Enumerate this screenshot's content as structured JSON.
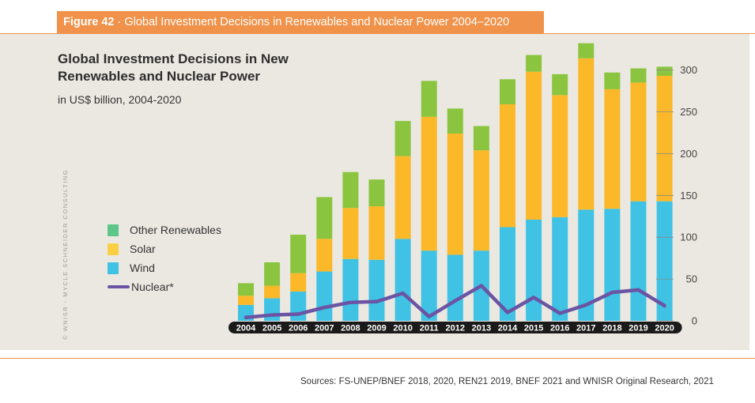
{
  "header": {
    "figure_label": "Figure 42",
    "separator": " · ",
    "title": "Global Investment Decisions in Renewables and Nuclear Power 2004–2020"
  },
  "chart_data": {
    "type": "bar",
    "title": "Global Investment Decisions in New Renewables and Nuclear Power",
    "subtitle": "in US$ billion, 2004-2020",
    "categories": [
      "2004",
      "2005",
      "2006",
      "2007",
      "2008",
      "2009",
      "2010",
      "2011",
      "2012",
      "2013",
      "2014",
      "2015",
      "2016",
      "2017",
      "2018",
      "2019",
      "2020"
    ],
    "stacked": true,
    "series": [
      {
        "name": "Wind",
        "kind": "bar",
        "color": "#3fc2e4",
        "values": [
          19,
          27,
          35,
          59,
          74,
          73,
          98,
          84,
          79,
          84,
          112,
          121,
          124,
          133,
          134,
          143,
          143
        ]
      },
      {
        "name": "Solar",
        "kind": "bar",
        "color": "#fbb829",
        "values": [
          11,
          15,
          22,
          39,
          61,
          64,
          99,
          160,
          145,
          120,
          147,
          177,
          146,
          181,
          143,
          142,
          150
        ]
      },
      {
        "name": "Other Renewables",
        "kind": "bar",
        "color": "#8bc540",
        "values": [
          15,
          28,
          46,
          50,
          43,
          32,
          42,
          43,
          30,
          29,
          30,
          20,
          25,
          18,
          20,
          17,
          11
        ]
      },
      {
        "name": "Nuclear*",
        "kind": "line",
        "color": "#6b54a3",
        "values": [
          4,
          7,
          8,
          16,
          22,
          23,
          33,
          5,
          24,
          42,
          10,
          28,
          9,
          19,
          34,
          37,
          18
        ]
      }
    ],
    "ylim": [
      0,
      310
    ],
    "yticks": [
      0,
      50,
      100,
      150,
      200,
      250,
      300
    ],
    "xlabel": "",
    "ylabel": "",
    "legend": [
      {
        "label": "Other Renewables",
        "color": "#5fc68a",
        "kind": "box"
      },
      {
        "label": "Solar",
        "color": "#fbcf44",
        "kind": "box"
      },
      {
        "label": "Wind",
        "color": "#3fc2e4",
        "kind": "box"
      },
      {
        "label": "Nuclear*",
        "color": "#6b54a3",
        "kind": "line"
      }
    ],
    "legend_position": "left"
  },
  "credit": "© WNISR - MYCLE SCHNEIDER CONSULTING",
  "sources": "Sources: FS-UNEP/BNEF 2018, 2020, REN21 2019, BNEF 2021 and WNISR Original Research, 2021"
}
